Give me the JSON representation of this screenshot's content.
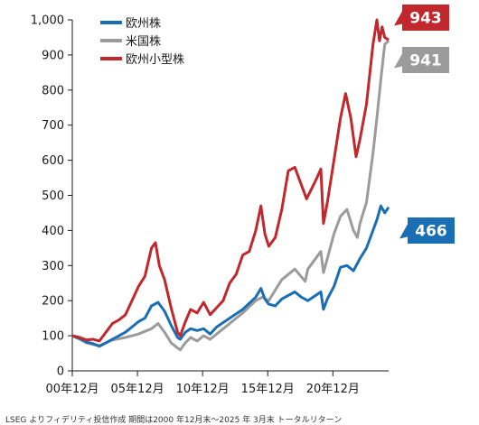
{
  "chart_data": {
    "type": "line",
    "title": "",
    "xlabel": "",
    "ylabel": "",
    "ylim": [
      0,
      1000
    ],
    "yticks": [
      0,
      100,
      200,
      300,
      400,
      500,
      600,
      700,
      800,
      900,
      1000
    ],
    "ytick_labels": [
      "0",
      "100",
      "200",
      "300",
      "400",
      "500",
      "600",
      "700",
      "800",
      "900",
      "1,000"
    ],
    "xlim": [
      2000.92,
      2025.2
    ],
    "xticks": [
      2000.92,
      2005.92,
      2010.92,
      2015.92,
      2020.92
    ],
    "xtick_labels": [
      "00年12月",
      "05年12月",
      "10年12月",
      "15年12月",
      "20年12月"
    ],
    "grid": false,
    "legend_position": "top-left",
    "series": [
      {
        "name": "欧州株",
        "color": "#1a6eb4",
        "end_label": "466",
        "x": [
          2000.92,
          2001.5,
          2002.0,
          2002.5,
          2003.0,
          2003.5,
          2004.0,
          2005.0,
          2006.0,
          2006.5,
          2007.0,
          2007.5,
          2008.0,
          2008.5,
          2009.0,
          2009.2,
          2009.6,
          2010.0,
          2010.5,
          2011.0,
          2011.5,
          2012.0,
          2013.0,
          2014.0,
          2015.0,
          2015.4,
          2015.7,
          2016.0,
          2016.5,
          2017.0,
          2018.0,
          2018.5,
          2019.0,
          2020.0,
          2020.2,
          2020.5,
          2021.0,
          2021.5,
          2022.0,
          2022.5,
          2023.0,
          2023.5,
          2024.0,
          2024.3,
          2024.6,
          2024.9,
          2025.2
        ],
        "y": [
          100,
          92,
          82,
          78,
          70,
          80,
          90,
          110,
          140,
          150,
          185,
          195,
          170,
          130,
          95,
          90,
          110,
          120,
          115,
          120,
          105,
          125,
          150,
          175,
          210,
          235,
          205,
          190,
          185,
          205,
          225,
          210,
          200,
          225,
          175,
          205,
          240,
          295,
          300,
          285,
          320,
          350,
          400,
          430,
          470,
          450,
          466
        ]
      },
      {
        "name": "米国株",
        "color": "#9b9b9b",
        "end_label": "941",
        "x": [
          2000.92,
          2001.5,
          2002.0,
          2002.5,
          2003.0,
          2003.5,
          2004.0,
          2005.0,
          2006.0,
          2007.0,
          2007.5,
          2008.0,
          2008.5,
          2009.0,
          2009.2,
          2009.6,
          2010.0,
          2010.5,
          2011.0,
          2011.5,
          2012.0,
          2013.0,
          2014.0,
          2015.0,
          2015.5,
          2016.0,
          2016.5,
          2017.0,
          2018.0,
          2018.8,
          2019.0,
          2020.0,
          2020.2,
          2020.5,
          2021.0,
          2021.5,
          2022.0,
          2022.5,
          2022.8,
          2023.0,
          2023.5,
          2024.0,
          2024.3,
          2024.6,
          2024.9,
          2025.2
        ],
        "y": [
          100,
          90,
          80,
          75,
          72,
          80,
          88,
          95,
          105,
          120,
          135,
          110,
          80,
          65,
          60,
          80,
          95,
          85,
          100,
          90,
          105,
          135,
          165,
          200,
          210,
          200,
          230,
          260,
          290,
          255,
          290,
          340,
          280,
          320,
          390,
          440,
          460,
          400,
          380,
          420,
          480,
          620,
          720,
          830,
          930,
          941
        ]
      },
      {
        "name": "欧州小型株",
        "color": "#c0282d",
        "end_label": "943",
        "x": [
          2000.92,
          2001.5,
          2002.0,
          2002.5,
          2003.0,
          2003.5,
          2004.0,
          2004.5,
          2005.0,
          2005.5,
          2006.0,
          2006.5,
          2007.0,
          2007.3,
          2007.6,
          2008.0,
          2008.5,
          2009.0,
          2009.2,
          2009.6,
          2010.0,
          2010.5,
          2011.0,
          2011.5,
          2012.0,
          2012.5,
          2013.0,
          2013.5,
          2014.0,
          2014.5,
          2015.0,
          2015.4,
          2015.7,
          2016.0,
          2016.5,
          2017.0,
          2017.5,
          2018.0,
          2018.5,
          2018.9,
          2019.3,
          2019.7,
          2020.0,
          2020.2,
          2020.5,
          2021.0,
          2021.5,
          2021.9,
          2022.3,
          2022.7,
          2023.0,
          2023.5,
          2024.0,
          2024.3,
          2024.5,
          2024.7,
          2024.9,
          2025.2
        ],
        "y": [
          100,
          95,
          88,
          90,
          85,
          110,
          135,
          145,
          160,
          200,
          240,
          270,
          350,
          365,
          300,
          260,
          180,
          110,
          100,
          140,
          175,
          165,
          195,
          160,
          180,
          200,
          250,
          275,
          330,
          340,
          400,
          470,
          390,
          355,
          380,
          460,
          570,
          580,
          530,
          490,
          520,
          550,
          575,
          420,
          480,
          600,
          720,
          790,
          720,
          610,
          660,
          760,
          930,
          1000,
          940,
          980,
          950,
          943
        ]
      }
    ]
  },
  "source_note": "LSEG よりフィデリティ投信作成 期間は2000 年12月末～2025 年 3月末 トータルリターン"
}
